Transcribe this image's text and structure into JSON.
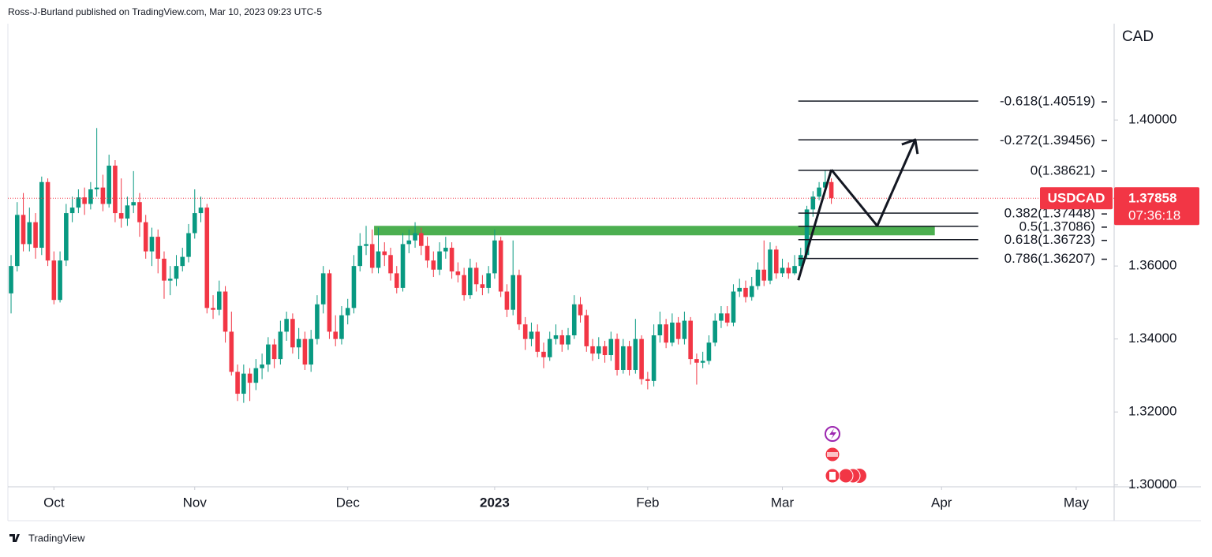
{
  "header": "Ross-J-Burland published on TradingView.com, Mar 10, 2023 09:23 UTC-5",
  "footer": "TradingView",
  "chart_data": {
    "type": "candlestick",
    "currency": "CAD",
    "symbol": "USDCAD",
    "countdown": "07:36:18",
    "up_color": "#089981",
    "down_color": "#f23645",
    "open": [
      1.3525,
      1.36,
      1.374,
      1.366,
      1.372,
      1.365,
      1.383,
      1.3615,
      1.3507,
      1.3615,
      1.3745,
      1.376,
      1.3788,
      1.377,
      1.381,
      1.3815,
      1.377,
      1.3875,
      1.3745,
      1.373,
      1.3766,
      1.3775,
      1.372,
      1.364,
      1.368,
      1.362,
      1.356,
      1.3565,
      1.36,
      1.3625,
      1.369,
      1.3745,
      1.376,
      1.3485,
      1.348,
      1.353,
      1.342,
      1.331,
      1.325,
      1.3305,
      1.328,
      1.332,
      1.333,
      1.3385,
      1.3345,
      1.342,
      1.3455,
      1.3377,
      1.34,
      1.333,
      1.34,
      1.3495,
      1.358,
      1.342,
      1.34,
      1.3465,
      1.3485,
      1.36,
      1.3655,
      1.366,
      1.3595,
      1.364,
      1.363,
      1.358,
      1.354,
      1.366,
      1.367,
      1.369,
      1.3655,
      1.3615,
      1.359,
      1.364,
      1.365,
      1.3585,
      1.3575,
      1.352,
      1.3595,
      1.355,
      1.354,
      1.358,
      1.367,
      1.353,
      1.348,
      1.3575,
      1.344,
      1.34,
      1.342,
      1.3365,
      1.335,
      1.34,
      1.341,
      1.3385,
      1.341,
      1.3495,
      1.3465,
      1.338,
      1.336,
      1.338,
      1.3356,
      1.34,
      1.3315,
      1.338,
      1.3315,
      1.34,
      1.329,
      1.3285,
      1.341,
      1.344,
      1.339,
      1.3445,
      1.34,
      1.345,
      1.3345,
      1.3335,
      1.334,
      1.339,
      1.345,
      1.347,
      1.3445,
      1.353,
      1.354,
      1.3515,
      1.3545,
      1.359,
      1.356,
      1.3645,
      1.358,
      1.3595,
      1.358,
      1.36,
      1.363,
      1.3755,
      1.379,
      1.3815,
      1.383
    ],
    "high": [
      1.363,
      1.3775,
      1.38,
      1.376,
      1.3745,
      1.3845,
      1.384,
      1.364,
      1.364,
      1.377,
      1.379,
      1.381,
      1.3815,
      1.383,
      1.3978,
      1.385,
      1.3905,
      1.389,
      1.384,
      1.379,
      1.386,
      1.38,
      1.374,
      1.3705,
      1.37,
      1.364,
      1.36,
      1.363,
      1.365,
      1.3715,
      1.381,
      1.379,
      1.377,
      1.352,
      1.356,
      1.3545,
      1.3475,
      1.333,
      1.333,
      1.332,
      1.3345,
      1.336,
      1.3405,
      1.34,
      1.345,
      1.3475,
      1.347,
      1.343,
      1.342,
      1.3425,
      1.352,
      1.36,
      1.359,
      1.3465,
      1.349,
      1.351,
      1.363,
      1.369,
      1.371,
      1.37,
      1.3705,
      1.3665,
      1.365,
      1.36,
      1.369,
      1.37,
      1.372,
      1.3705,
      1.368,
      1.364,
      1.3665,
      1.368,
      1.3665,
      1.361,
      1.3595,
      1.362,
      1.361,
      1.3575,
      1.36,
      1.37,
      1.368,
      1.355,
      1.367,
      1.359,
      1.346,
      1.3445,
      1.344,
      1.339,
      1.342,
      1.344,
      1.3425,
      1.343,
      1.352,
      1.3515,
      1.348,
      1.34,
      1.3405,
      1.3395,
      1.342,
      1.3415,
      1.34,
      1.3395,
      1.3455,
      1.341,
      1.331,
      1.344,
      1.3475,
      1.3455,
      1.347,
      1.346,
      1.3475,
      1.346,
      1.336,
      1.3365,
      1.341,
      1.347,
      1.349,
      1.349,
      1.355,
      1.3565,
      1.356,
      1.357,
      1.361,
      1.367,
      1.3665,
      1.3655,
      1.362,
      1.361,
      1.363,
      1.365,
      1.3765,
      1.3805,
      1.383,
      1.3862,
      1.384
    ],
    "low": [
      1.347,
      1.3585,
      1.364,
      1.364,
      1.362,
      1.363,
      1.36,
      1.3495,
      1.35,
      1.36,
      1.372,
      1.3745,
      1.374,
      1.3755,
      1.379,
      1.375,
      1.376,
      1.372,
      1.3705,
      1.371,
      1.3745,
      1.368,
      1.362,
      1.36,
      1.358,
      1.351,
      1.352,
      1.3545,
      1.3585,
      1.361,
      1.3675,
      1.372,
      1.347,
      1.3455,
      1.3465,
      1.339,
      1.33,
      1.323,
      1.3225,
      1.323,
      1.326,
      1.329,
      1.331,
      1.332,
      1.333,
      1.3395,
      1.336,
      1.3345,
      1.3315,
      1.331,
      1.3385,
      1.347,
      1.34,
      1.338,
      1.3385,
      1.344,
      1.347,
      1.3585,
      1.363,
      1.358,
      1.358,
      1.36,
      1.356,
      1.3525,
      1.353,
      1.3635,
      1.365,
      1.363,
      1.3595,
      1.357,
      1.3575,
      1.362,
      1.3565,
      1.3555,
      1.3505,
      1.351,
      1.353,
      1.352,
      1.3525,
      1.3565,
      1.3515,
      1.346,
      1.3465,
      1.3425,
      1.337,
      1.338,
      1.335,
      1.332,
      1.334,
      1.3385,
      1.3365,
      1.337,
      1.34,
      1.3445,
      1.3365,
      1.334,
      1.3345,
      1.3335,
      1.334,
      1.33,
      1.3305,
      1.33,
      1.3305,
      1.3275,
      1.3262,
      1.327,
      1.339,
      1.3375,
      1.338,
      1.3385,
      1.3385,
      1.333,
      1.3275,
      1.332,
      1.333,
      1.338,
      1.343,
      1.3435,
      1.3435,
      1.3515,
      1.35,
      1.3505,
      1.3535,
      1.3545,
      1.355,
      1.3565,
      1.357,
      1.3565,
      1.3575,
      1.359,
      1.362,
      1.3735,
      1.378,
      1.38,
      1.377
    ],
    "close": [
      1.36,
      1.374,
      1.366,
      1.372,
      1.365,
      1.383,
      1.3615,
      1.3507,
      1.3615,
      1.3745,
      1.376,
      1.3788,
      1.377,
      1.381,
      1.3815,
      1.377,
      1.3875,
      1.3745,
      1.373,
      1.3766,
      1.3775,
      1.372,
      1.364,
      1.368,
      1.362,
      1.356,
      1.3565,
      1.36,
      1.3625,
      1.369,
      1.3745,
      1.376,
      1.3485,
      1.348,
      1.353,
      1.342,
      1.331,
      1.325,
      1.3305,
      1.328,
      1.332,
      1.333,
      1.3385,
      1.3345,
      1.342,
      1.3455,
      1.3377,
      1.34,
      1.333,
      1.34,
      1.3495,
      1.358,
      1.342,
      1.34,
      1.3465,
      1.3485,
      1.36,
      1.3655,
      1.366,
      1.3595,
      1.364,
      1.363,
      1.358,
      1.354,
      1.366,
      1.367,
      1.369,
      1.3655,
      1.3615,
      1.359,
      1.364,
      1.365,
      1.3585,
      1.3575,
      1.352,
      1.3595,
      1.355,
      1.354,
      1.358,
      1.367,
      1.353,
      1.348,
      1.3575,
      1.344,
      1.34,
      1.342,
      1.3365,
      1.335,
      1.34,
      1.341,
      1.3385,
      1.341,
      1.3495,
      1.3465,
      1.338,
      1.336,
      1.338,
      1.3356,
      1.34,
      1.3315,
      1.338,
      1.3315,
      1.34,
      1.329,
      1.3285,
      1.341,
      1.344,
      1.339,
      1.3445,
      1.34,
      1.345,
      1.3345,
      1.3335,
      1.334,
      1.339,
      1.345,
      1.347,
      1.3445,
      1.353,
      1.354,
      1.3515,
      1.3545,
      1.359,
      1.356,
      1.3645,
      1.358,
      1.3595,
      1.358,
      1.36,
      1.363,
      1.3755,
      1.379,
      1.3815,
      1.383,
      1.37858
    ],
    "xlim": [
      -0.52,
      180.2
    ],
    "xticks": [
      {
        "value": 7,
        "label": "Oct"
      },
      {
        "value": 30,
        "label": "Nov"
      },
      {
        "value": 55,
        "label": "Dec"
      },
      {
        "value": 79,
        "label": "2023"
      },
      {
        "value": 104,
        "label": "Feb"
      },
      {
        "value": 126,
        "label": "Mar"
      },
      {
        "value": 152,
        "label": "Apr"
      },
      {
        "value": 174,
        "label": "May"
      }
    ],
    "ylim": [
      1.2995,
      1.4264
    ],
    "yticks": [
      {
        "value": 1.3,
        "label": "1.30000"
      },
      {
        "value": 1.32,
        "label": "1.32000"
      },
      {
        "value": 1.34,
        "label": "1.34000"
      },
      {
        "value": 1.36,
        "label": "1.36000"
      },
      {
        "value": 1.38,
        "label": "1.38000"
      },
      {
        "value": 1.4,
        "label": "1.40000"
      }
    ],
    "fib_x": [
      128.6,
      158
    ],
    "fib_levels": [
      {
        "value": 1.40519,
        "label": "-0.618(1.40519)"
      },
      {
        "value": 1.39456,
        "label": "-0.272(1.39456)"
      },
      {
        "value": 1.38621,
        "label": "0(1.38621)"
      },
      {
        "value": 1.37448,
        "label": "0.382(1.37448)"
      },
      {
        "value": 1.37086,
        "label": "0.5(1.37086)"
      },
      {
        "value": 1.36723,
        "label": "0.618(1.36723)"
      },
      {
        "value": 1.36207,
        "label": "0.786(1.36207)"
      }
    ],
    "zone": {
      "color": "#4caf50",
      "x": [
        59.3,
        150.9
      ],
      "y": [
        1.3684,
        1.371
      ]
    },
    "impulse": {
      "x": [
        128.6,
        134
      ],
      "y": [
        1.3561,
        1.3864
      ]
    },
    "projection": {
      "x": [
        134,
        141.5,
        147.7
      ],
      "y": [
        1.3864,
        1.371,
        1.3946
      ]
    }
  }
}
